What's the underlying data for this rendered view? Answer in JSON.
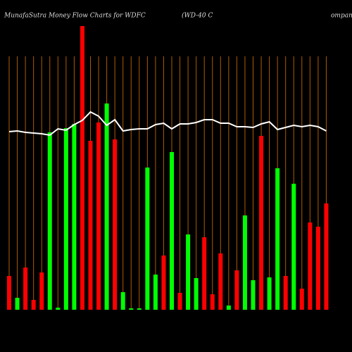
{
  "chart_data": {
    "type": "bar",
    "title": "MunafaSutra  Money Flow  Charts for WDFC",
    "subtitle": "(WD-40  C",
    "subtitle_tail": "ompany",
    "categories": [
      null,
      null,
      null,
      null,
      null,
      null,
      null,
      null,
      null,
      null,
      null,
      null,
      null,
      null,
      null,
      null,
      null,
      null,
      null,
      null,
      null,
      null,
      null,
      null,
      null,
      null,
      null,
      null,
      null,
      null,
      null,
      null,
      null,
      null,
      null,
      null,
      null,
      null,
      null,
      null
    ],
    "values": [
      48,
      17,
      60,
      14,
      53,
      252,
      3,
      258,
      264,
      403,
      240,
      266,
      293,
      242,
      25,
      2,
      2,
      202,
      50,
      77,
      224,
      24,
      107,
      45,
      103,
      22,
      80,
      6,
      56,
      134,
      42,
      247,
      46,
      201,
      48,
      179,
      30,
      124,
      118,
      151
    ],
    "bar_colors": [
      "#ff0000",
      "#00ff00",
      "#ff0000",
      "#ff0000",
      "#ff0000",
      "#00ff00",
      "#00ff00",
      "#00ff00",
      "#00ff00",
      "#ff0000",
      "#ff0000",
      "#ff0000",
      "#00ff00",
      "#ff0000",
      "#00ff00",
      "#00ff00",
      "#00ff00",
      "#00ff00",
      "#00ff00",
      "#ff0000",
      "#00ff00",
      "#ff0000",
      "#00ff00",
      "#00ff00",
      "#ff0000",
      "#ff0000",
      "#ff0000",
      "#00ff00",
      "#ff0000",
      "#00ff00",
      "#00ff00",
      "#ff0000",
      "#00ff00",
      "#00ff00",
      "#ff0000",
      "#00ff00",
      "#ff0000",
      "#ff0000",
      "#ff0000",
      "#ff0000"
    ],
    "line_values": [
      253,
      254,
      252,
      251,
      250,
      248,
      257,
      255,
      263,
      269,
      281,
      275,
      262,
      270,
      254,
      256,
      257,
      257,
      263,
      265,
      257,
      264,
      264,
      266,
      270,
      270,
      265,
      265,
      260,
      260,
      259,
      264,
      267,
      256,
      259,
      262,
      260,
      262,
      260,
      254
    ],
    "line_color": "#ffffff",
    "ylim": [
      0,
      410
    ]
  }
}
